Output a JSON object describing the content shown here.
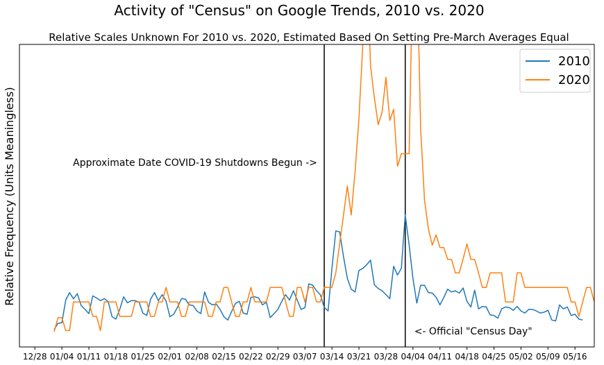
{
  "chart_data": {
    "type": "line",
    "title": "Activity of \"Census\" on Google Trends, 2010 vs. 2020",
    "subtitle": "Relative Scales Unknown For 2010 vs. 2020, Estimated Based On Setting Pre-March Averages Equal",
    "xlabel": "",
    "ylabel": "Relative Frequency (Units Meaningless)",
    "x_tick_labels": [
      "12/28",
      "01/04",
      "01/11",
      "01/18",
      "01/25",
      "02/01",
      "02/08",
      "02/15",
      "02/22",
      "02/29",
      "03/07",
      "03/14",
      "03/21",
      "03/28",
      "04/04",
      "04/11",
      "04/18",
      "04/25",
      "05/02",
      "05/09",
      "05/16"
    ],
    "x_tick_days": [
      -4,
      3,
      10,
      17,
      24,
      31,
      38,
      45,
      52,
      59,
      66,
      73,
      80,
      87,
      94,
      101,
      108,
      115,
      122,
      129,
      136
    ],
    "xlim": [
      -8,
      141
    ],
    "ylim": [
      0,
      100
    ],
    "legend_position": "top-right",
    "x_start_day": 1,
    "series": [
      {
        "name": "2010",
        "color": "#1f77b4",
        "values": [
          5.6,
          7.6,
          7.8,
          15.3,
          17.8,
          15.7,
          17.4,
          13.5,
          12.2,
          10.8,
          16.7,
          16.0,
          15.1,
          15.8,
          14.8,
          9.8,
          9.0,
          12.2,
          16.4,
          14.4,
          15.1,
          15.1,
          14.6,
          11.0,
          10.2,
          15.6,
          17.8,
          15.1,
          17.1,
          15.0,
          9.8,
          10.6,
          13.0,
          15.8,
          15.6,
          13.7,
          13.5,
          11.7,
          10.8,
          18.0,
          14.6,
          13.7,
          14.0,
          12.2,
          9.8,
          8.7,
          11.5,
          14.2,
          14.9,
          11.0,
          10.6,
          16.2,
          16.4,
          16.0,
          13.7,
          14.6,
          9.5,
          10.8,
          12.2,
          14.9,
          17.1,
          15.3,
          18.4,
          15.3,
          12.2,
          12.8,
          20.7,
          20.2,
          18.4,
          17.1,
          12.9,
          11.7,
          25.8,
          38.2,
          37.9,
          29.7,
          22.5,
          18.9,
          18.0,
          25.1,
          25.8,
          27.0,
          28.5,
          20.4,
          19.1,
          18.4,
          17.1,
          15.8,
          26.5,
          23.6,
          25.8,
          43.5,
          33.6,
          22.5,
          14.3,
          20.2,
          20.2,
          17.8,
          17.6,
          16.2,
          13.7,
          16.2,
          18.9,
          18.0,
          18.4,
          17.6,
          19.3,
          14.9,
          13.0,
          18.6,
          12.4,
          13.2,
          13.0,
          10.4,
          10.2,
          9.3,
          12.4,
          13.0,
          12.8,
          11.9,
          13.2,
          11.7,
          11.0,
          12.2,
          12.2,
          11.7,
          11.0,
          11.3,
          11.9,
          8.7,
          8.4,
          13.7,
          12.4,
          13.0,
          10.2,
          10.6,
          9.0,
          8.7
        ]
      },
      {
        "name": "2020",
        "color": "#ff7f0e",
        "values": [
          4.8,
          9.5,
          9.5,
          5.2,
          5.2,
          14.7,
          14.7,
          14.7,
          14.7,
          14.7,
          9.9,
          9.9,
          5.2,
          14.7,
          14.7,
          14.7,
          14.7,
          9.9,
          9.9,
          9.9,
          9.9,
          14.7,
          14.7,
          14.7,
          14.7,
          9.9,
          9.9,
          14.7,
          14.7,
          19.5,
          14.7,
          14.7,
          14.7,
          9.9,
          9.9,
          14.7,
          14.7,
          14.7,
          14.7,
          14.7,
          9.9,
          9.9,
          14.7,
          14.7,
          19.5,
          19.5,
          14.7,
          9.9,
          9.9,
          14.7,
          14.7,
          19.5,
          14.7,
          14.7,
          14.7,
          14.7,
          19.5,
          19.5,
          19.5,
          19.5,
          14.7,
          9.9,
          9.9,
          19.5,
          19.5,
          14.7,
          19.5,
          19.5,
          14.7,
          14.7,
          19.5,
          19.5,
          19.5,
          24.3,
          33.9,
          43.5,
          53.1,
          43.5,
          58.0,
          75.3,
          100,
          130,
          92.9,
          82.4,
          73.4,
          77.6,
          89.1,
          74.8,
          78.5,
          59.6,
          63.8,
          63.8,
          63.8,
          130,
          130,
          72.1,
          48.3,
          39.0,
          33.5,
          36.9,
          32.7,
          32.7,
          28.8,
          28.8,
          24.3,
          24.3,
          29.0,
          33.9,
          28.8,
          28.8,
          24.3,
          19.5,
          19.5,
          24.3,
          24.3,
          24.3,
          24.3,
          14.7,
          14.7,
          14.7,
          24.3,
          24.3,
          19.5,
          19.5,
          19.5,
          19.5,
          19.5,
          19.5,
          19.5,
          19.5,
          19.5,
          19.5,
          19.5,
          19.5,
          14.7,
          14.7,
          9.9,
          14.7,
          19.5,
          19.5,
          14.7
        ]
      }
    ],
    "annotations": [
      {
        "text": "Approximate Date COVID-19 Shutdowns Begun ->",
        "vline_day": 71
      },
      {
        "text": "<- Official \"Census Day\"",
        "vline_day": 92
      }
    ]
  }
}
